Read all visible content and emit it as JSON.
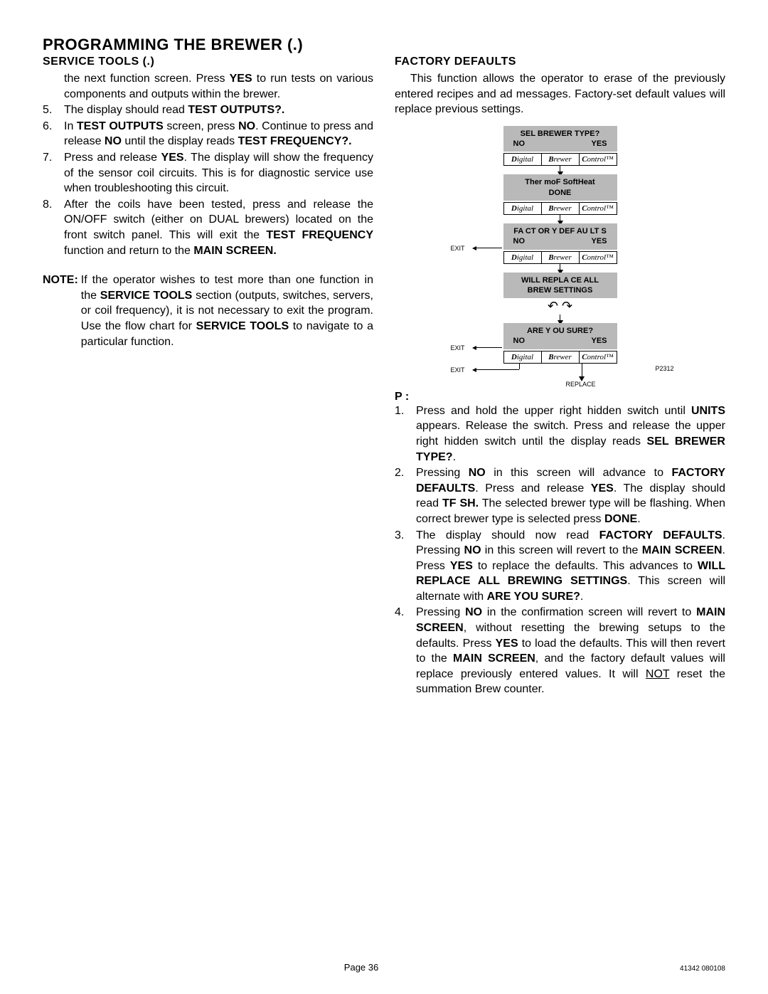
{
  "title": "PROGRAMMING THE BREWER (.)",
  "left": {
    "heading": "SERVICE TOOLS (.)",
    "intro_html": "the next function screen. Press <b>YES</b> to run tests on various components and outputs within the brewer.",
    "items": [
      {
        "n": "5.",
        "html": "The display should read <b>TEST OUTPUTS?.</b>"
      },
      {
        "n": "6.",
        "html": "In <b>TEST OUTPUTS</b> screen, press <b>NO</b>. Continue to press and release <b>NO</b> until the display reads <b>TEST FREQUENCY?.</b>"
      },
      {
        "n": "7.",
        "html": "Press and release <b>YES</b>. The display will show the frequency of the sensor coil circuits. This is for diagnostic service use when troubleshooting this circuit."
      },
      {
        "n": "8.",
        "html": "After the coils have been tested, press and release the ON/OFF switch (either on DUAL brewers) located on the front switch panel. This will exit the <b>TEST FREQUENCY</b> function and return to the <b>MAIN SCREEN.</b>"
      }
    ],
    "note_label": "NOTE:",
    "note_html": "If the operator wishes to test more than one function in the <b>SERVICE TOOLS</b> section (outputs, switches, servers, or coil frequency), it is not necessary to exit the program. Use the flow chart for <b>SERVICE TOOLS</b> to navigate to a particular function."
  },
  "right": {
    "heading": "FACTORY DEFAULTS",
    "intro_html": "This function allows the operator to erase of the previously entered recipes and ad messages. Factory-set default values will replace  previous settings.",
    "flow": {
      "boxes": [
        {
          "line1": "SEL BREWER TYPE?",
          "left": "NO",
          "right": "YES",
          "dbc": true
        },
        {
          "line1": "Ther moF  SoftHeat",
          "center2": "DONE",
          "dbc": true
        },
        {
          "line1": "FA CT OR Y DEF AU LT S",
          "left": "NO",
          "right": "YES",
          "dbc": true,
          "exit": true
        },
        {
          "line1": "WILL REPLA CE ALL",
          "line1b": "BREW SETTINGS",
          "hook": true
        },
        {
          "line1": "ARE Y OU SURE?",
          "left": "NO",
          "right": "YES",
          "dbc": true,
          "exit": true
        }
      ],
      "exit_label": "EXIT",
      "replace_label": "REPLACE",
      "code": "P2312",
      "dbc_cells": [
        "Digital",
        "Brewer",
        "Control™"
      ]
    },
    "procedure_heading": "P :",
    "items": [
      {
        "n": "1.",
        "html": "Press and hold the upper right hidden switch until <b>UNITS</b> appears. Release the switch. Press and release the upper right hidden switch until the display reads <b>SEL BREWER TYPE?</b>."
      },
      {
        "n": "2.",
        "html": "Pressing <b>NO</b> in this screen will advance to <b>FACTORY DEFAULTS</b>. Press and release <b>YES</b>. The display should read <b>TF SH.</b> The selected brewer type will be flashing. When correct brewer type is selected press <b>DONE</b>."
      },
      {
        "n": "3.",
        "html": "The display should now read <b>FACTORY DEFAULTS</b>. Pressing <b>NO</b> in this screen will revert to the <b>MAIN SCREEN</b>. Press <b>YES</b> to replace the defaults. This advances to <b>WILL REPLACE ALL BREWING SETTINGS</b>. This screen will alternate with <b>ARE YOU SURE?</b>."
      },
      {
        "n": "4.",
        "html": "Pressing <b>NO</b> in the confirmation screen will revert to <b>MAIN SCREEN</b>, without resetting the brewing setups to the defaults. Press <b>YES</b> to load the defaults. This will then revert to the <b>MAIN SCREEN</b>, and the factory default values will replace previously entered values. It will <u>NOT</u> reset the summation Brew counter."
      }
    ]
  },
  "footer": {
    "center": "Page 36",
    "right": "41342 080108"
  }
}
